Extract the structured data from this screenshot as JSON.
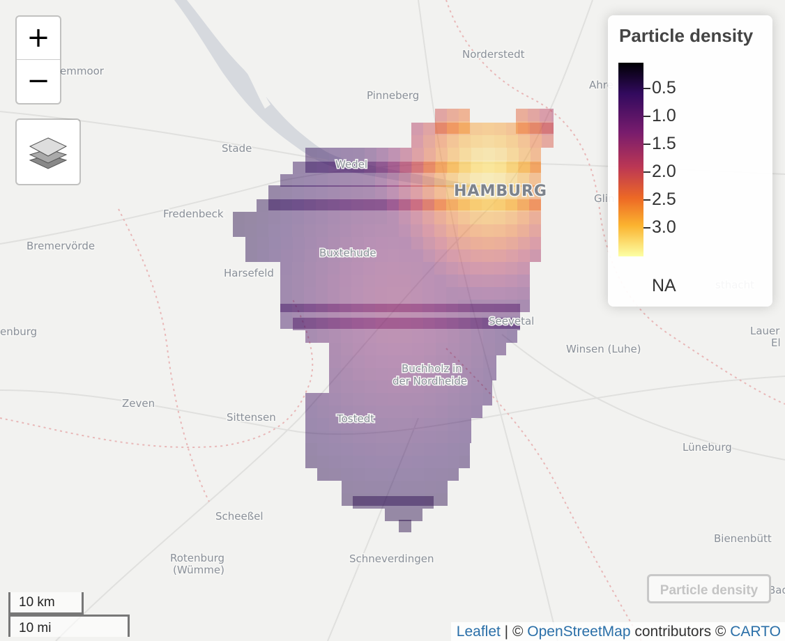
{
  "map": {
    "places": [
      {
        "name": "Norderstedt"
      },
      {
        "name": "Pinneberg"
      },
      {
        "name": "emmoor"
      },
      {
        "name": "Stade"
      },
      {
        "name": "Wedel"
      },
      {
        "name": "HAMBURG"
      },
      {
        "name": "Fredenbeck"
      },
      {
        "name": "Bremervörde"
      },
      {
        "name": "Buxtehude"
      },
      {
        "name": "Harsefeld"
      },
      {
        "name": "enburg"
      },
      {
        "name": "Seevetal"
      },
      {
        "name": "Winsen (Luhe)"
      },
      {
        "name": "Buchholz in"
      },
      {
        "name": "der Nordheide"
      },
      {
        "name": "Zeven"
      },
      {
        "name": "Sittensen"
      },
      {
        "name": "Tostedt"
      },
      {
        "name": "Lüneburg"
      },
      {
        "name": "Scheeßel"
      },
      {
        "name": "Rotenburg"
      },
      {
        "name": "(Wümme)"
      },
      {
        "name": "Schneverdingen"
      },
      {
        "name": "Bienenbütt"
      },
      {
        "name": "Ahre"
      },
      {
        "name": "Glin"
      },
      {
        "name": "sthacht"
      },
      {
        "name": "Lauer"
      },
      {
        "name": "El"
      },
      {
        "name": "Bad B"
      }
    ],
    "density_region": {
      "peak_location": "HAMBURG",
      "peak_value": 3.3,
      "edge_value": 0.5
    }
  },
  "controls": {
    "zoom_in": "+",
    "zoom_out": "−",
    "layers_icon": "layers-icon"
  },
  "legend": {
    "title": "Particle density",
    "ticks": [
      "0.5",
      "1.0",
      "1.5",
      "2.0",
      "2.5",
      "3.0"
    ],
    "na_label": "NA",
    "colors": [
      "#000004",
      "#320a5e",
      "#781c6d",
      "#bc3754",
      "#ed6925",
      "#fbb32f",
      "#fcffa4"
    ]
  },
  "layer_toggle": {
    "label": "Particle density"
  },
  "scale": {
    "km": "10 km",
    "mi": "10 mi"
  },
  "attribution": {
    "leaflet": "Leaflet",
    "sep1": " | © ",
    "osm": "OpenStreetMap",
    "middle": " contributors © ",
    "carto": "CARTO"
  }
}
